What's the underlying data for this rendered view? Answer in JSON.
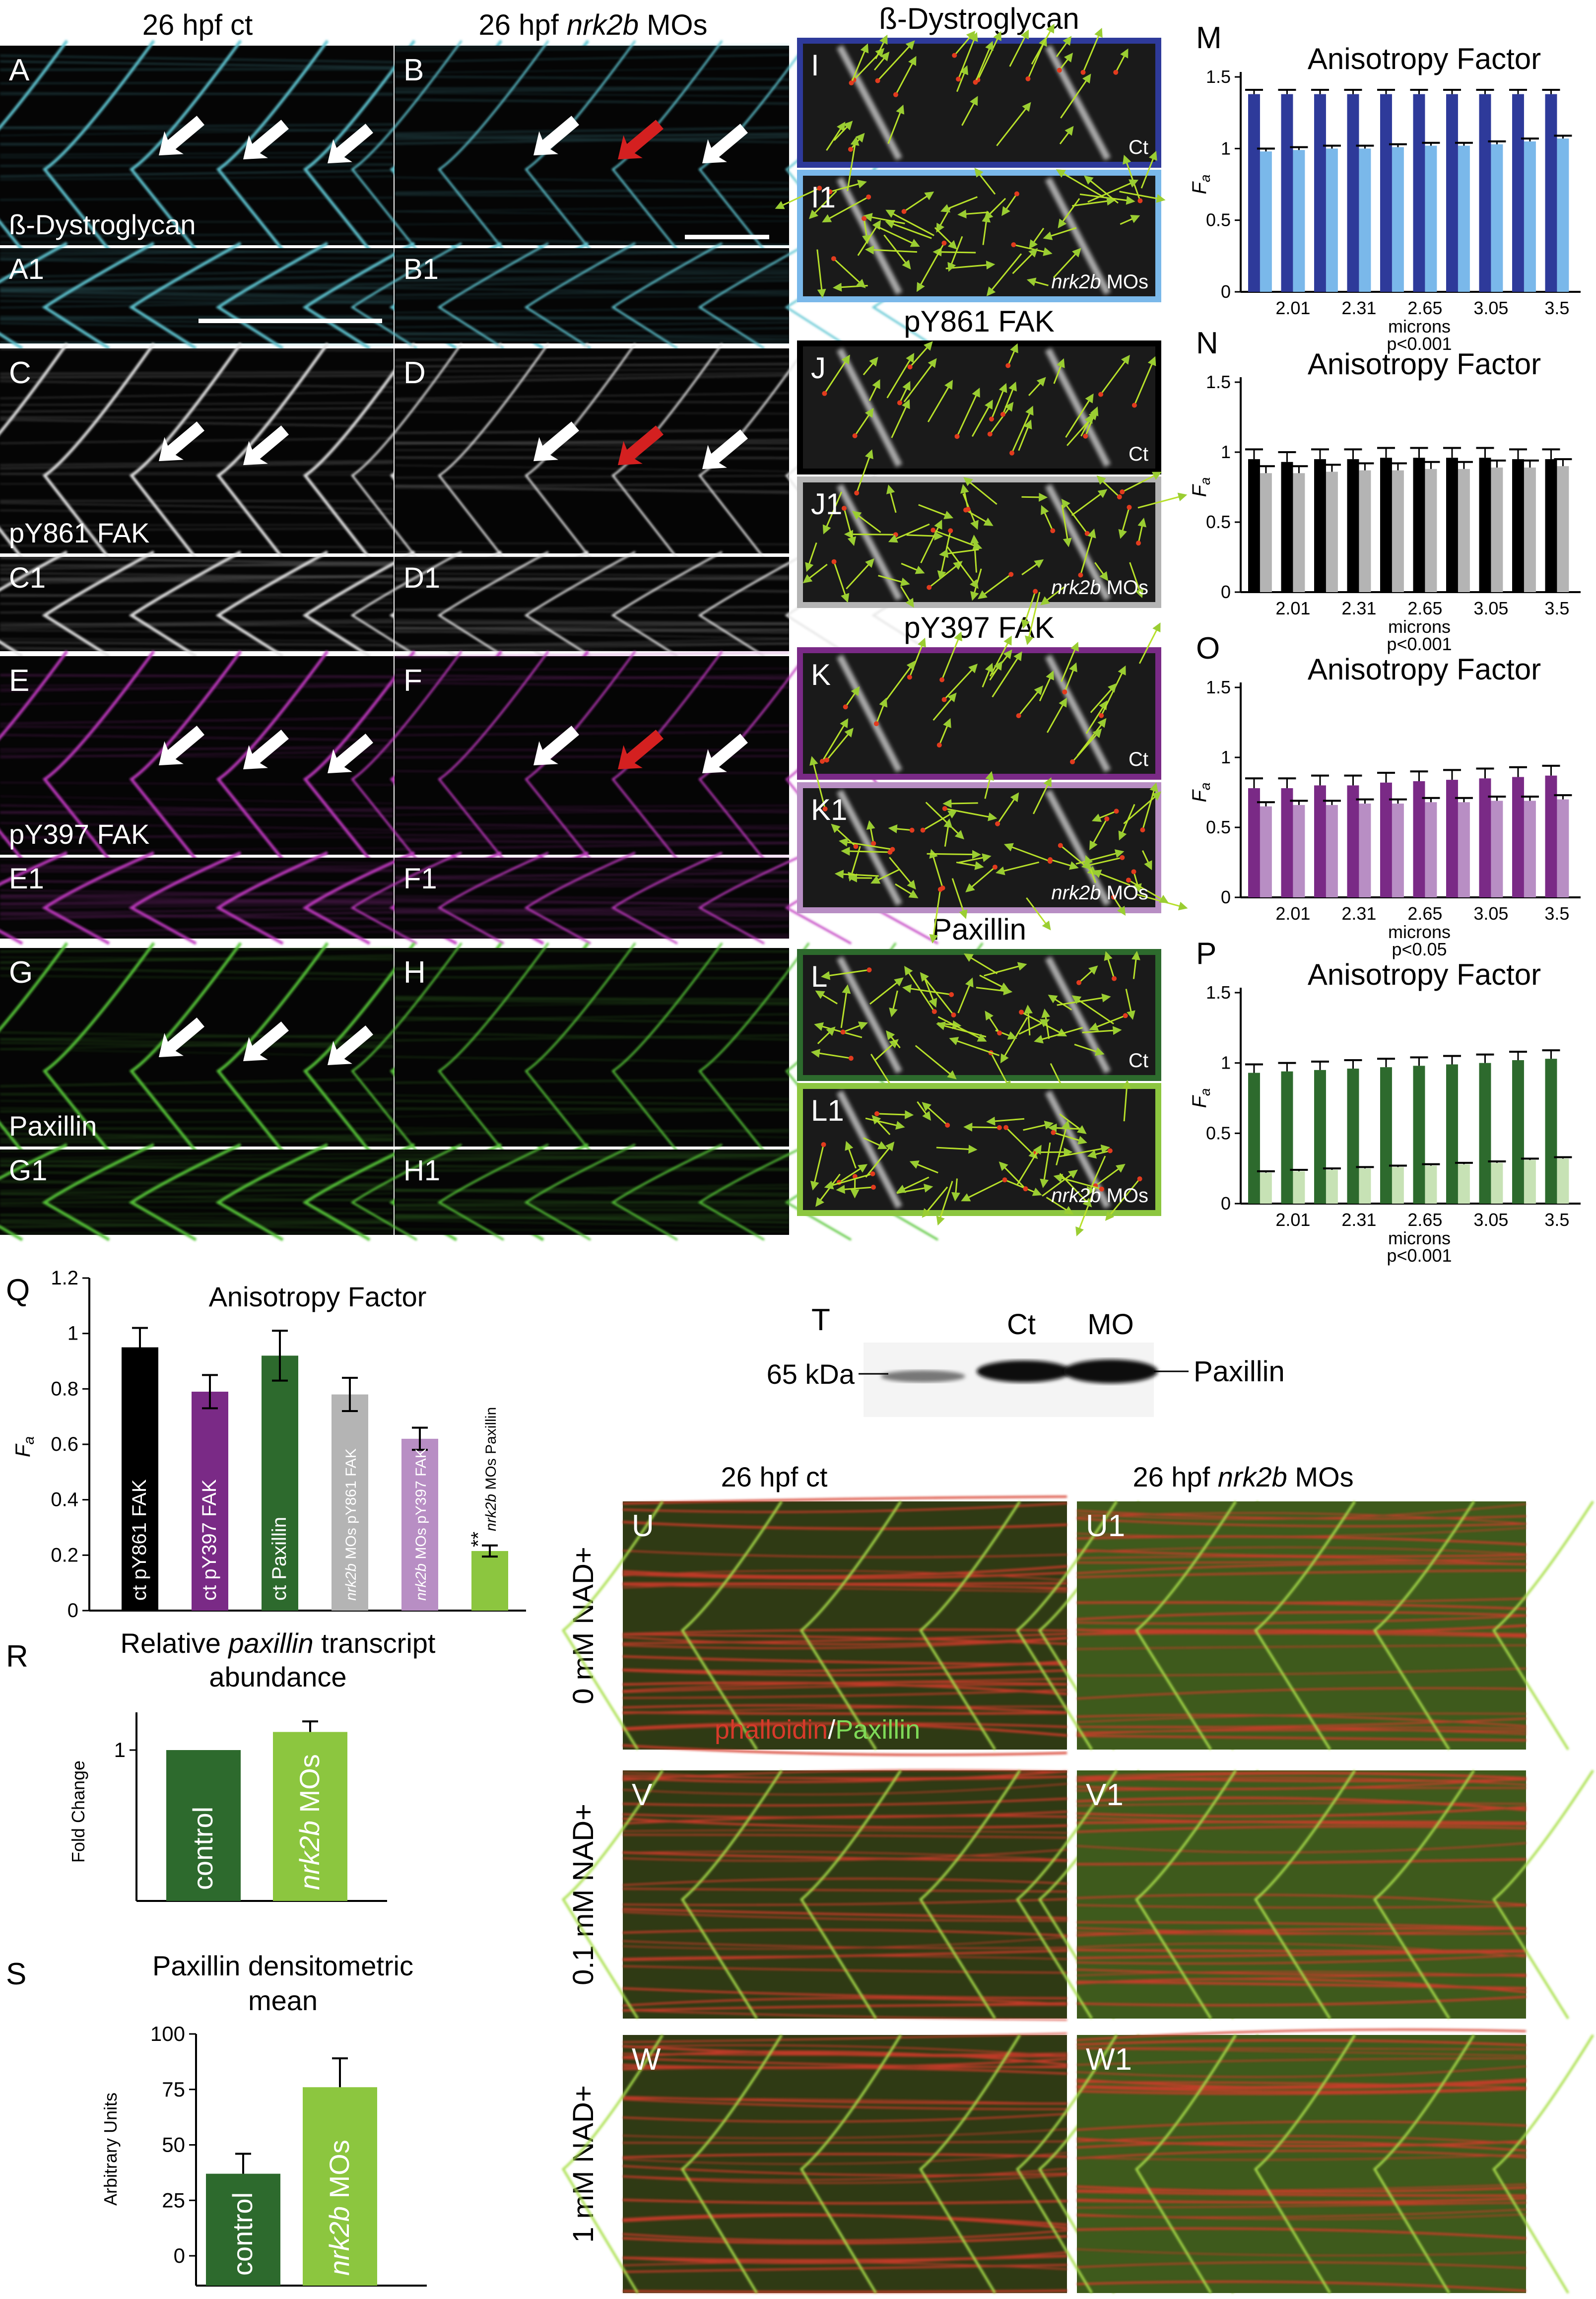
{
  "colors": {
    "dystroglycan": "#5fc6d3",
    "pY861": "#e6e6e6",
    "pY397": "#c03ac0",
    "paxillin": "#57c63a",
    "ct_dg": "#2e3a9a",
    "mo_dg": "#7ab8ea",
    "ct_861": "#000000",
    "mo_861": "#b4b4b4",
    "ct_397": "#7a2a86",
    "mo_397": "#b88ec4",
    "ct_pax": "#2d6a2d",
    "mo_pax": "#c7e2b5",
    "bar_ct_dark_green": "#2d6a2d",
    "bar_mo_light_green": "#8cc63f",
    "arrow_white": "#ffffff",
    "arrow_red": "#d42020",
    "phalloidin": "#d63a2a"
  },
  "headers": {
    "col_ct": "26 hpf ct",
    "col_mo": "26 hpf nrk2b MOs",
    "col_mo_prefix": "26 hpf ",
    "col_mo_gene": "nrk2b",
    "col_mo_suffix": " MOs"
  },
  "micrographs": [
    {
      "letter": "A",
      "stain": "ß-Dystroglycan",
      "channel": "dystroglycan",
      "arrows_white": 3,
      "arrows_red": 0
    },
    {
      "letter": "B",
      "stain": "",
      "channel": "dystroglycan",
      "arrows_white": 2,
      "arrows_red": 1
    },
    {
      "letter": "A1",
      "stain": "",
      "channel": "dystroglycan"
    },
    {
      "letter": "B1",
      "stain": "",
      "channel": "dystroglycan"
    },
    {
      "letter": "C",
      "stain": "pY861 FAK",
      "channel": "pY861",
      "arrows_white": 2,
      "arrows_red": 0
    },
    {
      "letter": "D",
      "stain": "",
      "channel": "pY861",
      "arrows_white": 2,
      "arrows_red": 1
    },
    {
      "letter": "C1",
      "stain": "",
      "channel": "pY861"
    },
    {
      "letter": "D1",
      "stain": "",
      "channel": "pY861"
    },
    {
      "letter": "E",
      "stain": "pY397 FAK",
      "channel": "pY397",
      "arrows_white": 3,
      "arrows_red": 0
    },
    {
      "letter": "F",
      "stain": "",
      "channel": "pY397",
      "arrows_white": 2,
      "arrows_red": 1
    },
    {
      "letter": "E1",
      "stain": "",
      "channel": "pY397"
    },
    {
      "letter": "F1",
      "stain": "",
      "channel": "pY397"
    },
    {
      "letter": "G",
      "stain": "Paxillin",
      "channel": "paxillin",
      "arrows_white": 3,
      "arrows_red": 0
    },
    {
      "letter": "H",
      "stain": "",
      "channel": "paxillin"
    },
    {
      "letter": "G1",
      "stain": "",
      "channel": "paxillin"
    },
    {
      "letter": "H1",
      "stain": "",
      "channel": "paxillin"
    }
  ],
  "vector_panels": {
    "titles": [
      "ß-Dystroglycan",
      "pY861 FAK",
      "pY397 FAK",
      "Paxillin"
    ],
    "items": [
      {
        "letter": "I",
        "tag": "Ct"
      },
      {
        "letter": "I1",
        "tag": "nrk2b MOs",
        "tag_gene": "nrk2b",
        "tag_suffix": " MOs"
      },
      {
        "letter": "J",
        "tag": "Ct"
      },
      {
        "letter": "J1",
        "tag": "nrk2b MOs",
        "tag_gene": "nrk2b",
        "tag_suffix": " MOs"
      },
      {
        "letter": "K",
        "tag": "Ct"
      },
      {
        "letter": "K1",
        "tag": "nrk2b MOs",
        "tag_gene": "nrk2b",
        "tag_suffix": " MOs"
      },
      {
        "letter": "L",
        "tag": "Ct"
      },
      {
        "letter": "L1",
        "tag": "nrk2b MOs",
        "tag_gene": "nrk2b",
        "tag_suffix": " MOs"
      }
    ]
  },
  "chart_data": [
    {
      "panel": "M",
      "type": "bar",
      "title": "Anisotropy Factor",
      "ylabel": "Fa",
      "xlabel": "microns",
      "stat": "p<0.001",
      "categories": [
        "",
        "2.01",
        "",
        "2.31",
        "",
        "2.65",
        "",
        "3.05",
        "",
        "3.5"
      ],
      "ylim": [
        0,
        1.5
      ],
      "yticks": [
        "0",
        "0.5",
        "1",
        "1.5"
      ],
      "series": [
        {
          "color": "ct_dg",
          "values": [
            1.38,
            1.38,
            1.38,
            1.38,
            1.38,
            1.38,
            1.38,
            1.38,
            1.38,
            1.38
          ],
          "errors": [
            0.03,
            0.03,
            0.03,
            0.03,
            0.03,
            0.03,
            0.03,
            0.03,
            0.03,
            0.03
          ]
        },
        {
          "color": "mo_dg",
          "values": [
            0.98,
            0.99,
            1.0,
            1.0,
            1.01,
            1.02,
            1.02,
            1.03,
            1.05,
            1.07
          ],
          "errors": [
            0.02,
            0.02,
            0.02,
            0.02,
            0.02,
            0.02,
            0.02,
            0.02,
            0.02,
            0.02
          ]
        }
      ]
    },
    {
      "panel": "N",
      "type": "bar",
      "title": "Anisotropy Factor",
      "ylabel": "Fa",
      "xlabel": "microns",
      "stat": "p<0.001",
      "categories": [
        "",
        "2.01",
        "",
        "2.31",
        "",
        "2.65",
        "",
        "3.05",
        "",
        "3.5"
      ],
      "ylim": [
        0,
        1.5
      ],
      "yticks": [
        "0",
        "0.5",
        "1",
        "1.5"
      ],
      "series": [
        {
          "color": "ct_861",
          "values": [
            0.95,
            0.93,
            0.95,
            0.95,
            0.96,
            0.96,
            0.96,
            0.96,
            0.95,
            0.95
          ],
          "errors": [
            0.07,
            0.07,
            0.07,
            0.07,
            0.07,
            0.07,
            0.07,
            0.07,
            0.07,
            0.07
          ]
        },
        {
          "color": "mo_861",
          "values": [
            0.85,
            0.85,
            0.86,
            0.87,
            0.87,
            0.88,
            0.88,
            0.89,
            0.89,
            0.9
          ],
          "errors": [
            0.05,
            0.05,
            0.05,
            0.05,
            0.05,
            0.05,
            0.05,
            0.05,
            0.05,
            0.05
          ]
        }
      ]
    },
    {
      "panel": "O",
      "type": "bar",
      "title": "Anisotropy Factor",
      "ylabel": "Fa",
      "xlabel": "microns",
      "stat": "p<0.05",
      "categories": [
        "",
        "2.01",
        "",
        "2.31",
        "",
        "2.65",
        "",
        "3.05",
        "",
        "3.5"
      ],
      "ylim": [
        0,
        1.5
      ],
      "yticks": [
        "0",
        "0.5",
        "1",
        "1.5"
      ],
      "series": [
        {
          "color": "ct_397",
          "values": [
            0.78,
            0.78,
            0.8,
            0.8,
            0.82,
            0.83,
            0.84,
            0.85,
            0.86,
            0.87
          ],
          "errors": [
            0.07,
            0.07,
            0.07,
            0.07,
            0.07,
            0.07,
            0.07,
            0.07,
            0.07,
            0.07
          ]
        },
        {
          "color": "mo_397",
          "values": [
            0.65,
            0.66,
            0.66,
            0.67,
            0.67,
            0.68,
            0.68,
            0.69,
            0.69,
            0.7
          ],
          "errors": [
            0.03,
            0.03,
            0.03,
            0.03,
            0.03,
            0.03,
            0.03,
            0.03,
            0.03,
            0.03
          ]
        }
      ]
    },
    {
      "panel": "P",
      "type": "bar",
      "title": "Anisotropy Factor",
      "ylabel": "Fa",
      "xlabel": "microns",
      "stat": "p<0.001",
      "categories": [
        "",
        "2.01",
        "",
        "2.31",
        "",
        "2.65",
        "",
        "3.05",
        "",
        "3.5"
      ],
      "ylim": [
        0,
        1.5
      ],
      "yticks": [
        "0",
        "0.5",
        "1",
        "1.5"
      ],
      "series": [
        {
          "color": "ct_pax",
          "values": [
            0.93,
            0.94,
            0.95,
            0.96,
            0.97,
            0.98,
            0.99,
            1.0,
            1.02,
            1.03
          ],
          "errors": [
            0.06,
            0.06,
            0.06,
            0.06,
            0.06,
            0.06,
            0.06,
            0.06,
            0.06,
            0.06
          ]
        },
        {
          "color": "mo_pax",
          "values": [
            0.22,
            0.23,
            0.24,
            0.25,
            0.26,
            0.27,
            0.28,
            0.29,
            0.31,
            0.32
          ],
          "errors": [
            0.01,
            0.01,
            0.01,
            0.01,
            0.01,
            0.01,
            0.01,
            0.01,
            0.01,
            0.01
          ]
        }
      ]
    },
    {
      "panel": "Q",
      "type": "bar",
      "title": "Anisotropy Factor",
      "ylabel": "Fa",
      "ylim": [
        0,
        1.2
      ],
      "yticks": [
        "0",
        "0.2",
        "0.4",
        "0.6",
        "0.8",
        "1",
        "1.2"
      ],
      "categories": [
        "ct pY861 FAK",
        "ct pY397 FAK",
        "ct Paxillin",
        "nrk2b MOs pY861 FAK",
        "nrk2b MOs pY397 FAK",
        "nrk2b MOs Paxillin"
      ],
      "bar_colors": [
        "#000000",
        "#7a2a86",
        "#2d6a2d",
        "#b4b4b4",
        "#b88ec4",
        "#8cc63f"
      ],
      "values": [
        0.95,
        0.79,
        0.92,
        0.78,
        0.62,
        0.215
      ],
      "errors": [
        0.07,
        0.06,
        0.09,
        0.06,
        0.04,
        0.02
      ],
      "annotation": "**"
    },
    {
      "panel": "R",
      "type": "bar",
      "title": "Relative paxillin transcript abundance",
      "title_line1_prefix": "Relative ",
      "title_line1_gene": "paxillin",
      "title_line1_suffix": " transcript",
      "title_line2": "abundance",
      "ylabel": "Fold Change",
      "yticks": [
        "1"
      ],
      "categories": [
        "control",
        "nrk2b MOs"
      ],
      "bar_colors": [
        "#2d6a2d",
        "#8cc63f"
      ],
      "values": [
        1.0,
        1.12
      ],
      "errors": [
        0,
        0.07
      ],
      "ylim": [
        0,
        1.25
      ]
    },
    {
      "panel": "S",
      "type": "bar",
      "title": "Paxillin densitometric mean",
      "title_line1": "Paxillin densitometric",
      "title_line2": "mean",
      "ylabel": "Arbitrary Units",
      "ylim": [
        0,
        100
      ],
      "yticks": [
        "0",
        "25",
        "50",
        "75",
        "100"
      ],
      "categories": [
        "control",
        "nrk2b MOs"
      ],
      "bar_colors": [
        "#2d6a2d",
        "#8cc63f"
      ],
      "values": [
        37,
        76
      ],
      "errors": [
        9,
        13
      ]
    }
  ],
  "blot": {
    "letter": "T",
    "lane_ct": "Ct",
    "lane_mo": "MO",
    "marker": "65 kDa",
    "band": "Paxillin"
  },
  "rescue": {
    "col_ct": "26 hpf ct",
    "col_mo_prefix": "26 hpf ",
    "col_mo_gene": "nrk2b",
    "col_mo_suffix": " MOs",
    "rows": [
      {
        "label": "0 mM NAD+",
        "left": "U",
        "right": "U1"
      },
      {
        "label": "0.1 mM NAD+",
        "left": "V",
        "right": "V1"
      },
      {
        "label": "1 mM NAD+",
        "left": "W",
        "right": "W1"
      }
    ],
    "stain_red": "phalloidin",
    "stain_sep": "/",
    "stain_green": "Paxillin"
  }
}
